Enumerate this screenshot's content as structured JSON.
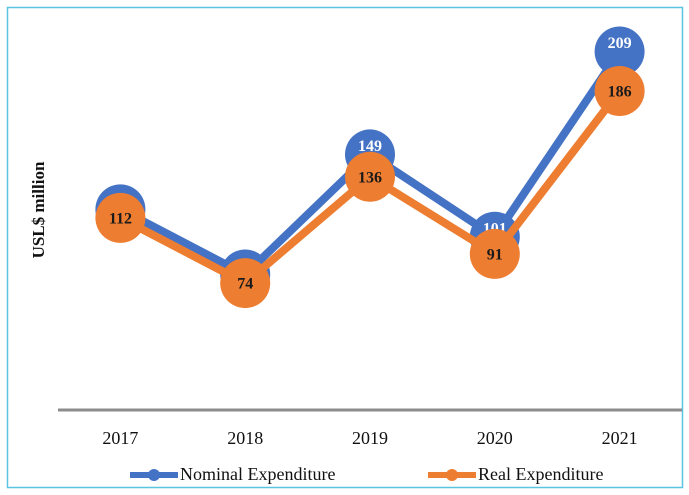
{
  "chart_data": {
    "type": "line",
    "y_label": "USL$ million",
    "categories": [
      "2017",
      "2018",
      "2019",
      "2020",
      "2021"
    ],
    "series": [
      {
        "name": "Nominal Expenditure",
        "color": "#4472c4",
        "label_color": "#ffffff",
        "values": [
          117,
          79,
          149,
          101,
          209
        ]
      },
      {
        "name": "Real Expenditure",
        "color": "#ed7d31",
        "label_color": "#1a1a1a",
        "values": [
          112,
          74,
          136,
          91,
          186
        ]
      }
    ],
    "ylim": [
      0,
      230
    ],
    "grid": false,
    "legend": "bottom"
  }
}
